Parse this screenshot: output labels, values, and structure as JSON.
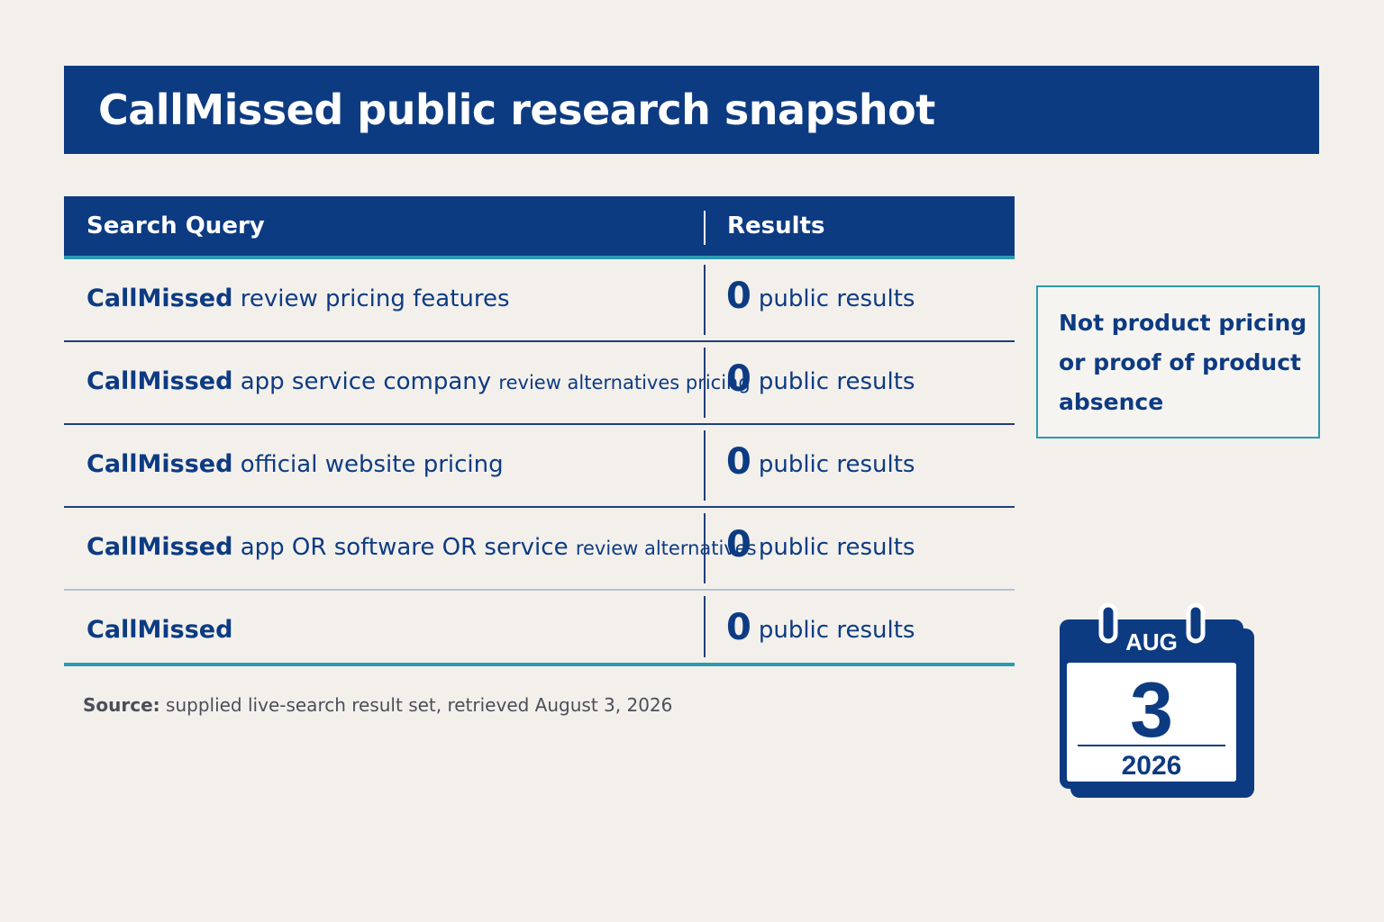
{
  "title": "CallMissed public research snapshot",
  "table": {
    "headers": {
      "query": "Search Query",
      "results": "Results"
    },
    "rows": [
      {
        "brand": "CallMissed",
        "query_main": "review pricing features",
        "query_small": "",
        "count": "0",
        "label": "public results"
      },
      {
        "brand": "CallMissed",
        "query_main": "app service company",
        "query_small": "review alternatives pricing",
        "count": "0",
        "label": "public results"
      },
      {
        "brand": "CallMissed",
        "query_main": "official website pricing",
        "query_small": "",
        "count": "0",
        "label": "public results"
      },
      {
        "brand": "CallMissed",
        "query_main": "app OR software OR service",
        "query_small": "review alternatives",
        "count": "0",
        "label": "public results"
      },
      {
        "brand": "CallMissed",
        "query_main": "",
        "query_small": "",
        "count": "0",
        "label": "public results"
      }
    ]
  },
  "source": {
    "label": "Source:",
    "text": "supplied live-search result set, retrieved August 3, 2026"
  },
  "note": {
    "lines": [
      "Not product pricing",
      "or proof of product",
      "absence"
    ]
  },
  "calendar": {
    "month": "AUG",
    "day": "3",
    "year": "2026",
    "icon": "calendar-icon"
  },
  "colors": {
    "primary": "#0d3b82",
    "accent": "#2c9aae",
    "background": "#f3f0ec"
  }
}
